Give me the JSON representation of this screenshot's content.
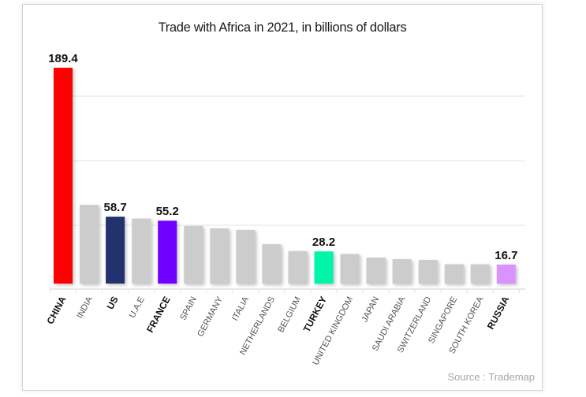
{
  "chart_data": {
    "type": "bar",
    "title": "Trade with Africa in 2021, in billions of dollars",
    "xlabel": "",
    "ylabel": "",
    "source": "Source : Trademap",
    "grid": true,
    "legend": "none",
    "categories": [
      "CHINA",
      "INDIA",
      "US",
      "U.A.E",
      "FRANCE",
      "SPAIN",
      "GERMANY",
      "ITALIA",
      "NETHERLANDS",
      "BELGIUM",
      "TURKEY",
      "UNITED KINGDOM",
      "JAPAN",
      "SAUDI ARABIA",
      "SWITZERLAND",
      "SINGAPORE",
      "SOUTH KOREA",
      "RUSSIA"
    ],
    "values": [
      189.4,
      69.0,
      58.7,
      57.0,
      55.2,
      50.5,
      48.4,
      47.0,
      34.5,
      28.5,
      28.2,
      26.0,
      22.8,
      21.4,
      20.7,
      17.0,
      16.9,
      16.7
    ],
    "labels": [
      "189.4",
      "",
      "58.7",
      "",
      "55.2",
      "",
      "",
      "",
      "",
      "",
      "28.2",
      "",
      "",
      "",
      "",
      "",
      "",
      "16.7"
    ],
    "highlighted": [
      true,
      false,
      true,
      false,
      true,
      false,
      false,
      false,
      false,
      false,
      true,
      false,
      false,
      false,
      false,
      false,
      false,
      true
    ],
    "colors": [
      "#ff0000",
      "#cccccc",
      "#22306e",
      "#cccccc",
      "#7000ff",
      "#cccccc",
      "#cccccc",
      "#cccccc",
      "#cccccc",
      "#cccccc",
      "#00f5a8",
      "#cccccc",
      "#cccccc",
      "#cccccc",
      "#cccccc",
      "#cccccc",
      "#cccccc",
      "#d993ff"
    ],
    "ylim": [
      0,
      189.4
    ]
  }
}
